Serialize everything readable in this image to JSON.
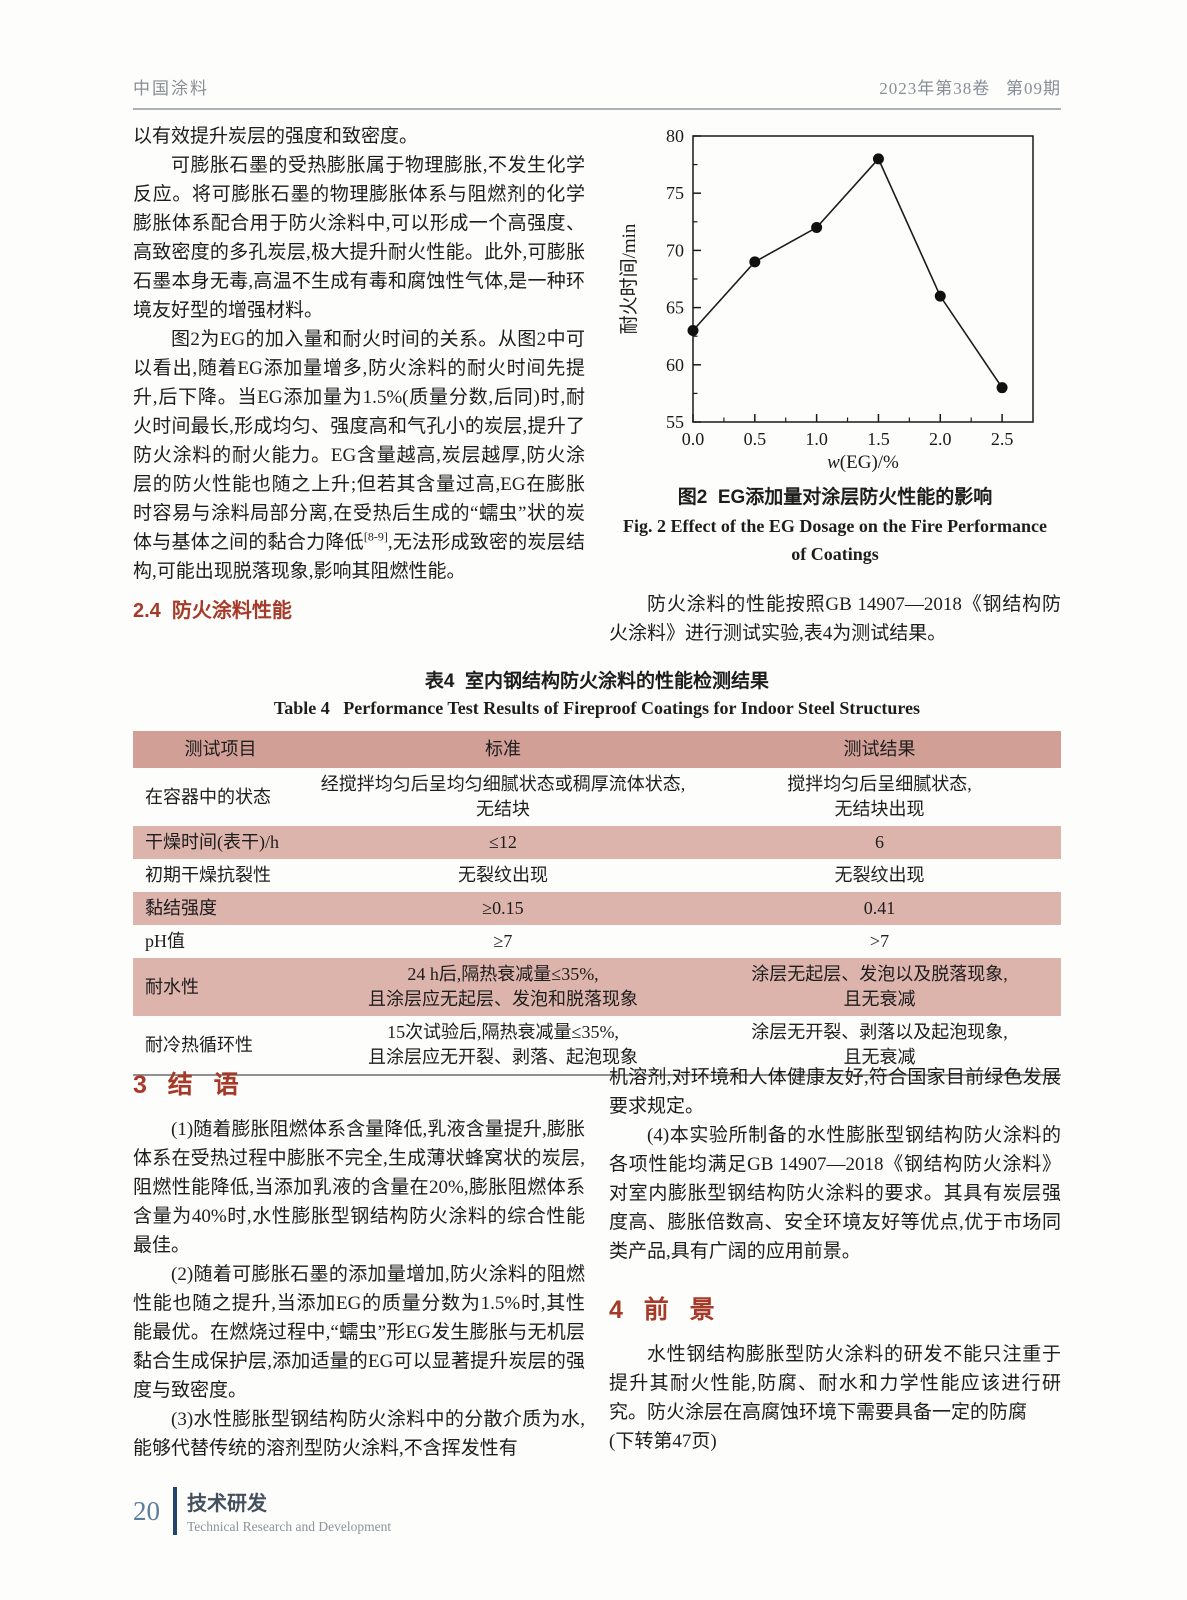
{
  "header": {
    "journal": "中国涂料",
    "issue": "2023年第38卷   第09期"
  },
  "left_column": {
    "p0": "以有效提升炭层的强度和致密度。",
    "p1": "可膨胀石墨的受热膨胀属于物理膨胀,不发生化学反应。将可膨胀石墨的物理膨胀体系与阻燃剂的化学膨胀体系配合用于防火涂料中,可以形成一个高强度、高致密度的多孔炭层,极大提升耐火性能。此外,可膨胀石墨本身无毒,高温不生成有毒和腐蚀性气体,是一种环境友好型的增强材料。",
    "p2_a": "图2为EG的加入量和耐火时间的关系。从图2中可以看出,随着EG添加量增多,防火涂料的耐火时间先提升,后下降。当EG添加量为1.5%(质量分数,后同)时,耐火时间最长,形成均匀、强度高和气孔小的炭层,提升了防火涂料的耐火能力。EG含量越高,炭层越厚,防火涂层的防火性能也随之上升;但若其含量过高,EG在膨胀时容易与涂料局部分离,在受热后生成的“蠕虫”状的炭体与基体之间的黏合力降低",
    "p2_sup": "[8-9]",
    "p2_b": ",无法形成致密的炭层结构,可能出现脱落现象,影响其阻燃性能。",
    "section_heading": "2.4  防火涂料性能"
  },
  "chart_data": {
    "type": "line",
    "title": "",
    "x": [
      0.0,
      0.5,
      1.0,
      1.5,
      2.0,
      2.5
    ],
    "y": [
      63,
      69,
      72,
      78,
      66,
      58
    ],
    "xlabel_italic": "w",
    "xlabel_rest": "(EG)/%",
    "ylabel": "耐火时间/min",
    "xlim": [
      0,
      2.75
    ],
    "ylim": [
      55,
      80
    ],
    "x_ticks": [
      0.0,
      0.5,
      1.0,
      1.5,
      2.0,
      2.5
    ],
    "y_ticks": [
      55,
      60,
      65,
      70,
      75,
      80
    ],
    "x_minor_step": 0.25,
    "y_minor_step": 2.5,
    "grid": "off",
    "legend": "none",
    "marker": "filled-circle",
    "line_color": "#1a1a1a"
  },
  "figure": {
    "caption_zh": "图2  EG添加量对涂层防火性能的影响",
    "caption_en": "Fig. 2  Effect of the EG Dosage on the Fire Performance\nof Coatings"
  },
  "right_column": {
    "p1": "防火涂料的性能按照GB 14907—2018《钢结构防火涂料》进行测试实验,表4为测试结果。"
  },
  "table": {
    "title_zh": "表4  室内钢结构防火涂料的性能检测结果",
    "title_en": "Table 4   Performance Test Results of Fireproof Coatings for Indoor Steel Structures",
    "headers": [
      "测试项目",
      "标准",
      "测试结果"
    ],
    "rows": [
      {
        "item": "在容器中的状态",
        "standard": "经搅拌均匀后呈均匀细腻状态或稠厚流体状态,\n无结块",
        "result": "搅拌均匀后呈细腻状态,\n无结块出现"
      },
      {
        "item": "干燥时间(表干)/h",
        "standard": "≤12",
        "result": "6"
      },
      {
        "item": "初期干燥抗裂性",
        "standard": "无裂纹出现",
        "result": "无裂纹出现"
      },
      {
        "item": "黏结强度",
        "standard": "≥0.15",
        "result": "0.41"
      },
      {
        "item": "pH值",
        "standard": "≥7",
        "result": ">7"
      },
      {
        "item": "耐水性",
        "standard": "24 h后,隔热衰减量≤35%,\n且涂层应无起层、发泡和脱落现象",
        "result": "涂层无起层、发泡以及脱落现象,\n且无衰减"
      },
      {
        "item": "耐冷热循环性",
        "standard": "15次试验后,隔热衰减量≤35%,\n且涂层应无开裂、剥落、起泡现象",
        "result": "涂层无开裂、剥落以及起泡现象,\n且无衰减"
      }
    ]
  },
  "conclusion": {
    "heading": "3   结   语",
    "p1": "(1)随着膨胀阻燃体系含量降低,乳液含量提升,膨胀体系在受热过程中膨胀不完全,生成薄状蜂窝状的炭层,阻燃性能降低,当添加乳液的含量在20%,膨胀阻燃体系含量为40%时,水性膨胀型钢结构防火涂料的综合性能最佳。",
    "p2": "(2)随着可膨胀石墨的添加量增加,防火涂料的阻燃性能也随之提升,当添加EG的质量分数为1.5%时,其性能最优。在燃烧过程中,“蠕虫”形EG发生膨胀与无机层黏合生成保护层,添加适量的EG可以显著提升炭层的强度与致密度。",
    "p3": "(3)水性膨胀型钢结构防火涂料中的分散介质为水,能够代替传统的溶剂型防火涂料,不含挥发性有"
  },
  "right_bottom": {
    "p3_cont": "机溶剂,对环境和人体健康友好,符合国家目前绿色发展要求规定。",
    "p4": "(4)本实验所制备的水性膨胀型钢结构防火涂料的各项性能均满足GB 14907—2018《钢结构防火涂料》对室内膨胀型钢结构防火涂料的要求。其具有炭层强度高、膨胀倍数高、安全环境友好等优点,优于市场同类产品,具有广阔的应用前景。",
    "heading": "4   前   景",
    "p5": "水性钢结构膨胀型防火涂料的研发不能只注重于提升其耐火性能,防腐、耐水和力学性能应该进行研究。防火涂层在高腐蚀环境下需要具备一定的防腐",
    "continuation_note": "(下转第47页)"
  },
  "footer": {
    "page_number": "20",
    "section_zh": "技术研发",
    "section_en": "Technical Research and Development"
  }
}
